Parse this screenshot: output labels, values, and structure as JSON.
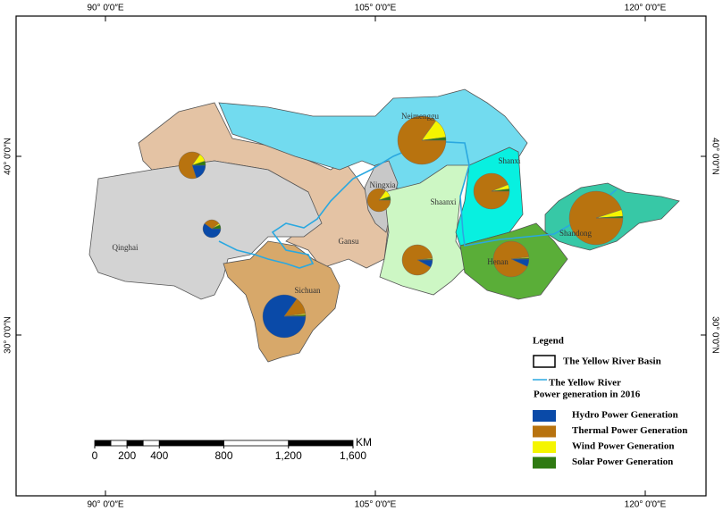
{
  "map": {
    "coords": {
      "top": [
        "90° 0′0″E",
        "105° 0′0″E",
        "120° 0′0″E"
      ],
      "bottom": [
        "90° 0′0″E",
        "105° 0′0″E",
        "120° 0′0″E"
      ],
      "left": [
        "40° 0′0″N",
        "30° 0′0″N"
      ],
      "right": [
        "40° 0′0″N",
        "30° 0′0″N"
      ]
    },
    "provinces": [
      {
        "name": "Qinghai",
        "shares": [
          60,
          30,
          3,
          7
        ]
      },
      {
        "name": "Gansu",
        "shares": [
          20,
          65,
          10,
          5
        ]
      },
      {
        "name": "Ningxia",
        "shares": [
          0,
          85,
          10,
          5
        ]
      },
      {
        "name": "Neimenggu",
        "shares": [
          0,
          85,
          13,
          2
        ]
      },
      {
        "name": "Shanxi",
        "shares": [
          0,
          94,
          4,
          2
        ]
      },
      {
        "name": "Shaanxi",
        "shares": [
          8,
          90,
          1,
          1
        ]
      },
      {
        "name": "Henan",
        "shares": [
          7,
          91,
          1,
          1
        ]
      },
      {
        "name": "Shandong",
        "shares": [
          0,
          95,
          4,
          1
        ]
      },
      {
        "name": "Sichuan",
        "shares": [
          85,
          13,
          1,
          1
        ]
      }
    ],
    "legend": {
      "title": "Legend",
      "basin": "The Yellow River Basin",
      "river": "The Yellow River",
      "subtitle": "Power generation in 2016",
      "items": [
        {
          "label": "Hydro Power Generation",
          "color": "#0a4aa8"
        },
        {
          "label": "Thermal Power Generation",
          "color": "#b8730f"
        },
        {
          "label": "Wind Power Generation",
          "color": "#f5f500"
        },
        {
          "label": "Solar Power Generation",
          "color": "#2f7a12"
        }
      ]
    },
    "scale": {
      "unit": "KM",
      "ticks": [
        0,
        200,
        400,
        800,
        {
          "value": 1200,
          "label": "1,200"
        },
        {
          "value": 1600,
          "label": "1,600"
        }
      ]
    }
  }
}
